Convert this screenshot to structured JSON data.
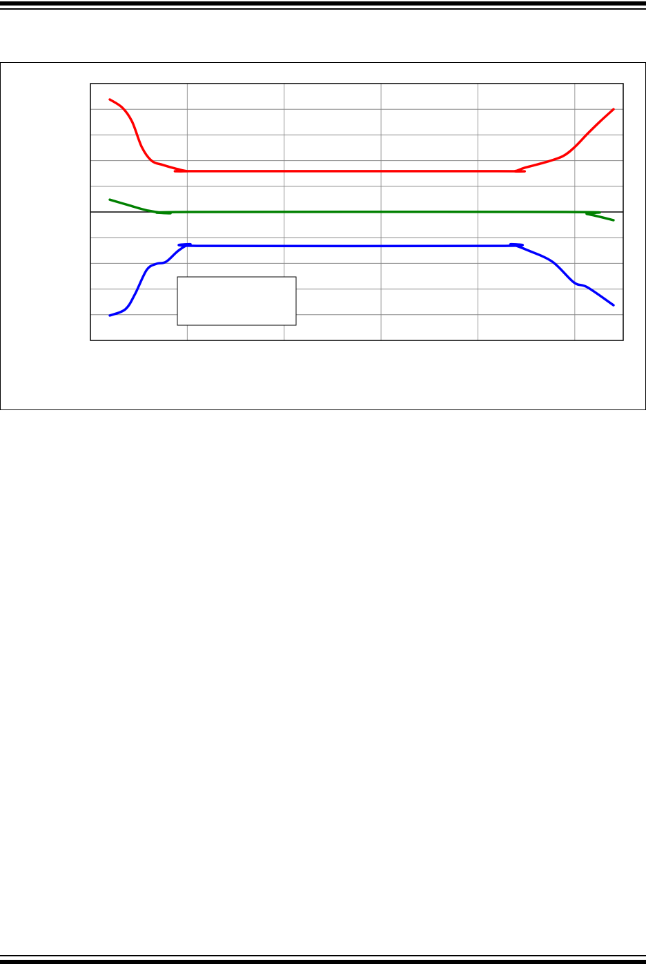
{
  "chart_data": {
    "type": "line",
    "title": "",
    "xlabel": "",
    "ylabel": "",
    "xlim": [
      0,
      5.5
    ],
    "ylim": [
      -5,
      5
    ],
    "x_grid_step": 1,
    "y_grid_step": 1,
    "grid": true,
    "zero_line": true,
    "legend": {
      "placement": "bottom-left",
      "entries": []
    },
    "series": [
      {
        "color": "#ff0000",
        "x": [
          0.2,
          0.33,
          0.43,
          0.53,
          0.63,
          0.75,
          0.9,
          1.0,
          1.14,
          4.2,
          4.38,
          4.48,
          4.7,
          4.88,
          5.0,
          5.13,
          5.26,
          5.4
        ],
        "y": [
          4.38,
          4.06,
          3.52,
          2.53,
          2.0,
          1.83,
          1.67,
          1.59,
          1.59,
          1.59,
          1.59,
          1.72,
          1.94,
          2.18,
          2.53,
          3.04,
          3.52,
          4.0
        ]
      },
      {
        "color": "#008000",
        "x": [
          0.2,
          0.39,
          0.6,
          0.82,
          1.03,
          4.91,
          5.13,
          5.4
        ],
        "y": [
          0.48,
          0.27,
          0.05,
          -0.05,
          0.0,
          0.0,
          -0.08,
          -0.32
        ]
      },
      {
        "color": "#0000ff",
        "x": [
          0.2,
          0.36,
          0.46,
          0.58,
          0.68,
          0.78,
          0.91,
          1.03,
          1.18,
          4.2,
          4.34,
          4.52,
          4.77,
          4.99,
          5.13,
          5.4
        ],
        "y": [
          -4.03,
          -3.79,
          -3.2,
          -2.26,
          -2.02,
          -1.94,
          -1.5,
          -1.26,
          -1.32,
          -1.32,
          -1.26,
          -1.5,
          -1.94,
          -2.74,
          -2.93,
          -3.63
        ]
      }
    ]
  }
}
